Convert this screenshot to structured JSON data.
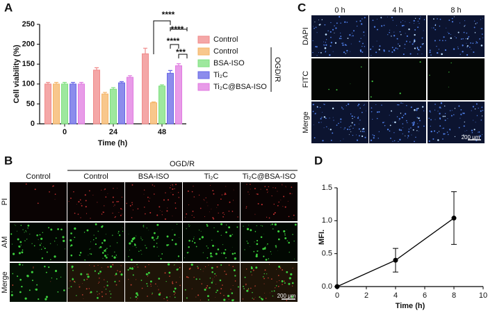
{
  "chart_data": [
    {
      "type": "bar",
      "panel": "A",
      "xlabel": "Time (h)",
      "ylabel": "Cell viability (%)",
      "categories": [
        "0",
        "24",
        "48"
      ],
      "series": [
        {
          "name": "Control",
          "color": "#f08a8a",
          "values": [
            100,
            135,
            176
          ],
          "errors": [
            4,
            6,
            14
          ]
        },
        {
          "name": "Control",
          "color": "#f5b466",
          "values": [
            100,
            75,
            53
          ],
          "errors": [
            4,
            4,
            2
          ]
        },
        {
          "name": "BSA-ISO",
          "color": "#7ee07e",
          "values": [
            100,
            87,
            95
          ],
          "errors": [
            4,
            4,
            3
          ]
        },
        {
          "name": "Ti₂C",
          "color": "#6666e6",
          "values": [
            100,
            103,
            127
          ],
          "errors": [
            4,
            3,
            7
          ]
        },
        {
          "name": "Ti₂C@BSA-ISO",
          "color": "#e07ae0",
          "values": [
            100,
            117,
            146
          ],
          "errors": [
            4,
            4,
            5
          ]
        }
      ],
      "group_label": "OGD/R",
      "annotations": [
        "****",
        "****",
        "****",
        "***"
      ],
      "ylim": [
        0,
        250
      ],
      "yticks": [
        0,
        50,
        100,
        150,
        200,
        250
      ]
    },
    {
      "type": "line",
      "panel": "D",
      "xlabel": "Time (h)",
      "ylabel": "MFI.",
      "x": [
        0,
        4,
        8
      ],
      "values": [
        0,
        0.4,
        1.04
      ],
      "errors": [
        0,
        0.18,
        0.4
      ],
      "color": "#000000",
      "xlim": [
        0,
        10
      ],
      "xticks": [
        0,
        2,
        4,
        6,
        8,
        10
      ],
      "ylim": [
        0,
        1.5
      ],
      "yticks": [
        {
          "value": 0,
          "label": "0.0"
        },
        {
          "value": 0.5,
          "label": "0.5"
        },
        {
          "value": 1,
          "label": "1.0"
        },
        {
          "value": 1.5,
          "label": "1.5"
        }
      ]
    }
  ],
  "panel_b": {
    "letter": "B",
    "group_label": "OGD/R",
    "columns": [
      "Control",
      "Control",
      "BSA-ISO",
      "Ti₂C",
      "Ti₂C@BSA-ISO"
    ],
    "rows": [
      "PI",
      "AM",
      "Merge"
    ],
    "scale_bar": "200 μm"
  },
  "panel_c": {
    "letter": "C",
    "columns": [
      "0 h",
      "4 h",
      "8 h"
    ],
    "rows": [
      "DAPI",
      "FITC",
      "Merge"
    ],
    "scale_bar": "200 μm"
  }
}
